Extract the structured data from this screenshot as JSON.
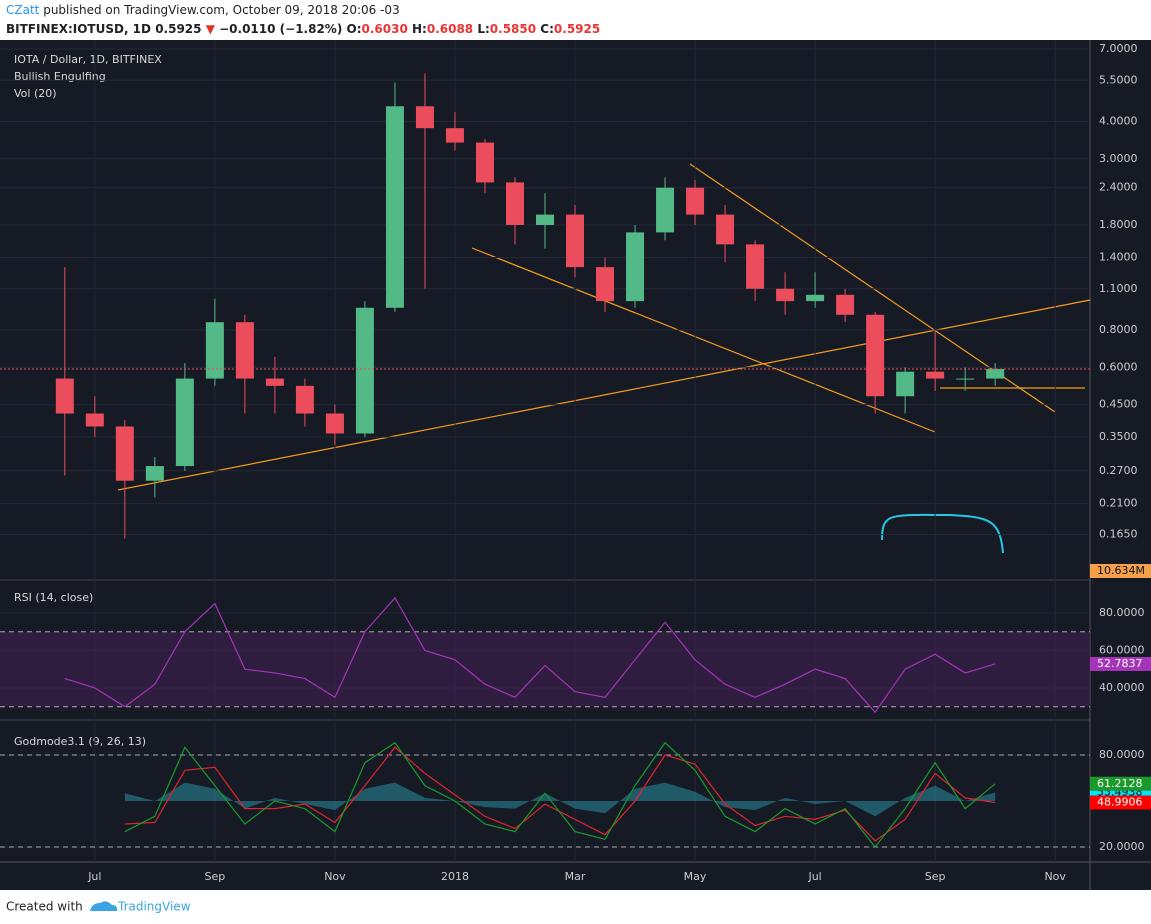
{
  "header": {
    "author": "CZatt",
    "published": "published on TradingView.com, October 09, 2018 20:06 -03",
    "symbol": "BITFINEX:IOTUSD, 1D",
    "last": "0.5925",
    "arrow": "▼",
    "change": "−0.0110 (−1.82%)",
    "ohlc": [
      {
        "label": "O:",
        "value": "0.6030"
      },
      {
        "label": "H:",
        "value": "0.6088"
      },
      {
        "label": "L:",
        "value": "0.5850"
      },
      {
        "label": "C:",
        "value": "0.5925"
      }
    ]
  },
  "footer": {
    "created": "Created with",
    "brand": "TradingView"
  },
  "chart_data": [
    {
      "type": "candlestick",
      "title": "IOTA / Dollar, 1D, BITFINEX",
      "annotations": [
        "Bullish Engulfing",
        "Vol (20)"
      ],
      "volume_label": "10.634M",
      "log_scale": true,
      "up_color": "#53b987",
      "down_color": "#eb4d5c",
      "grid": true,
      "x": [
        6.5,
        7.0,
        7.5,
        8.0,
        8.5,
        9.0,
        9.5,
        10.0,
        10.5,
        11.0,
        11.5,
        12.0,
        12.5,
        13.0,
        13.5,
        14.0,
        14.5,
        15.0,
        15.5,
        16.0,
        16.5,
        17.0,
        17.5,
        18.0,
        18.5,
        19.0,
        19.5,
        20.0,
        20.5,
        21.0,
        21.5,
        22.0
      ],
      "open": [
        0.55,
        0.42,
        0.38,
        0.25,
        0.28,
        0.55,
        0.85,
        0.55,
        0.52,
        0.42,
        0.36,
        0.95,
        4.5,
        3.8,
        3.4,
        2.5,
        1.8,
        1.95,
        1.3,
        1.0,
        1.7,
        2.4,
        1.95,
        1.55,
        1.1,
        1.0,
        1.05,
        0.9,
        0.48,
        0.58,
        0.55,
        0.55
      ],
      "high": [
        1.3,
        0.48,
        0.4,
        0.3,
        0.62,
        1.02,
        0.9,
        0.65,
        0.55,
        0.45,
        1.0,
        5.4,
        5.8,
        4.3,
        3.5,
        2.6,
        2.3,
        2.1,
        1.4,
        1.8,
        2.6,
        2.55,
        2.1,
        1.6,
        1.25,
        1.25,
        1.1,
        0.92,
        0.6,
        0.8,
        0.6,
        0.62
      ],
      "low": [
        0.26,
        0.35,
        0.16,
        0.22,
        0.27,
        0.52,
        0.42,
        0.42,
        0.38,
        0.33,
        0.35,
        0.92,
        1.1,
        3.2,
        2.3,
        1.55,
        1.5,
        1.2,
        0.92,
        0.95,
        1.6,
        1.8,
        1.35,
        1.0,
        0.9,
        0.95,
        0.85,
        0.42,
        0.42,
        0.5,
        0.5,
        0.52
      ],
      "close": [
        0.42,
        0.38,
        0.25,
        0.28,
        0.55,
        0.85,
        0.55,
        0.52,
        0.42,
        0.36,
        0.95,
        4.5,
        3.8,
        3.4,
        2.5,
        1.8,
        1.95,
        1.3,
        1.0,
        1.7,
        2.4,
        1.95,
        1.55,
        1.1,
        1.0,
        1.05,
        0.9,
        0.48,
        0.58,
        0.55,
        0.55,
        0.5925
      ],
      "xlim": [
        5.42,
        23.58
      ],
      "xticks": [
        {
          "value": 7,
          "label": "Jul"
        },
        {
          "value": 9,
          "label": "Sep"
        },
        {
          "value": 11,
          "label": "Nov"
        },
        {
          "value": 13,
          "label": "2018"
        },
        {
          "value": 15,
          "label": "Mar"
        },
        {
          "value": 17,
          "label": "May"
        },
        {
          "value": 19,
          "label": "Jul"
        },
        {
          "value": 21,
          "label": "Sep"
        },
        {
          "value": 23,
          "label": "Nov"
        }
      ],
      "ylim": [
        0.118,
        7.39
      ],
      "yticks": [
        {
          "value": 7,
          "label": "7.0000"
        },
        {
          "value": 5.5,
          "label": "5.5000"
        },
        {
          "value": 4,
          "label": "4.0000"
        },
        {
          "value": 3,
          "label": "3.0000"
        },
        {
          "value": 2.4,
          "label": "2.4000"
        },
        {
          "value": 1.8,
          "label": "1.8000"
        },
        {
          "value": 1.4,
          "label": "1.4000"
        },
        {
          "value": 1.1,
          "label": "1.1000"
        },
        {
          "value": 0.8,
          "label": "0.8000"
        },
        {
          "value": 0.6,
          "label": "0.6000"
        },
        {
          "value": 0.45,
          "label": "0.4500"
        },
        {
          "value": 0.35,
          "label": "0.3500"
        },
        {
          "value": 0.27,
          "label": "0.2700"
        },
        {
          "value": 0.21,
          "label": "0.2100"
        },
        {
          "value": 0.165,
          "label": "0.1650"
        }
      ]
    },
    {
      "type": "line",
      "title": "RSI (14, close)",
      "band": [
        30,
        70
      ],
      "band_color": "#3a1f4a",
      "x": [
        6.5,
        7.0,
        7.5,
        8.0,
        8.5,
        9.0,
        9.5,
        10.0,
        10.5,
        11.0,
        11.5,
        12.0,
        12.5,
        13.0,
        13.5,
        14.0,
        14.5,
        15.0,
        15.5,
        16.0,
        16.5,
        17.0,
        17.5,
        18.0,
        18.5,
        19.0,
        19.5,
        20.0,
        20.5,
        21.0,
        21.5,
        22.0
      ],
      "series": [
        {
          "color": "#a534b8",
          "label_color": "#a534b8",
          "values": [
            45,
            40,
            30,
            42,
            70,
            85,
            50,
            48,
            45,
            35,
            70,
            88,
            60,
            55,
            42,
            35,
            52,
            38,
            35,
            55,
            75,
            55,
            42,
            35,
            42,
            50,
            45,
            27,
            50,
            58,
            48,
            52.7837
          ]
        }
      ],
      "ylim": [
        22.9,
        96.5
      ],
      "yticks": [
        {
          "value": 80,
          "label": "80.0000"
        },
        {
          "value": 60,
          "label": "60.0000"
        },
        {
          "value": 40,
          "label": "40.0000"
        }
      ]
    },
    {
      "type": "line",
      "title": "Godmode3.1 (9, 26, 13)",
      "levels": [
        20,
        80
      ],
      "area_base": 50,
      "x": [
        6.5,
        7.0,
        7.5,
        8.0,
        8.5,
        9.0,
        9.5,
        10.0,
        10.5,
        11.0,
        11.5,
        12.0,
        12.5,
        13.0,
        13.5,
        14.0,
        14.5,
        15.0,
        15.5,
        16.0,
        16.5,
        17.0,
        17.5,
        18.0,
        18.5,
        19.0,
        19.5,
        20.0,
        20.5,
        21.0,
        21.5,
        22.0
      ],
      "series": [
        {
          "color": "#2a8ea0",
          "area": true,
          "label_color": "#00e5ff",
          "values": [
            null,
            null,
            55,
            50,
            62,
            58,
            45,
            52,
            48,
            44,
            58,
            62,
            52,
            50,
            46,
            45,
            55,
            45,
            42,
            58,
            62,
            56,
            46,
            44,
            52,
            48,
            50,
            40,
            52,
            60,
            50,
            55.4938
          ]
        },
        {
          "color": "#e0242e",
          "label_color": "#ff0000",
          "values": [
            null,
            null,
            35,
            36,
            70,
            72,
            45,
            45,
            48,
            36,
            60,
            85,
            68,
            54,
            40,
            32,
            48,
            38,
            28,
            50,
            80,
            74,
            48,
            34,
            40,
            38,
            44,
            24,
            38,
            68,
            52,
            48.9906
          ]
        },
        {
          "color": "#1a9a2a",
          "label_color": "#1a9a2a",
          "values": [
            null,
            null,
            30,
            40,
            85,
            60,
            35,
            50,
            45,
            30,
            75,
            88,
            60,
            50,
            35,
            30,
            55,
            30,
            25,
            60,
            88,
            70,
            40,
            30,
            45,
            35,
            45,
            20,
            45,
            75,
            45,
            61.2128
          ]
        }
      ],
      "ylim": [
        10.2,
        101.5
      ],
      "yticks": [
        {
          "value": 80,
          "label": "80.0000"
        },
        {
          "value": 20,
          "label": "20.0000"
        }
      ]
    }
  ]
}
